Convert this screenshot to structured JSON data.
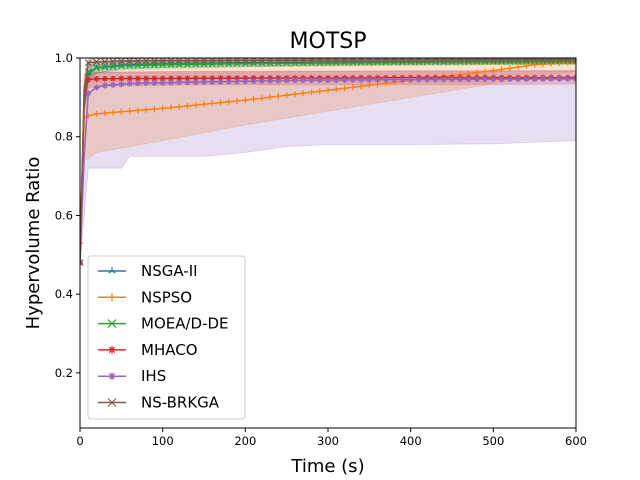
{
  "chart_data": {
    "type": "line",
    "title": "MOTSP",
    "xlabel": "Time (s)",
    "ylabel": "Hypervolume Ratio",
    "xlim": [
      0,
      600
    ],
    "ylim": [
      0.06,
      1.0
    ],
    "xticks": [
      0,
      100,
      200,
      300,
      400,
      500,
      600
    ],
    "yticks": [
      0.2,
      0.4,
      0.6,
      0.8,
      1.0
    ],
    "xtick_labels": [
      "0",
      "100",
      "200",
      "300",
      "400",
      "500",
      "600"
    ],
    "ytick_labels": [
      "0.2",
      "0.4",
      "0.6",
      "0.8",
      "1.0"
    ],
    "grid": false,
    "legend_position": "lower-left",
    "series": [
      {
        "name": "NSGA-II",
        "color": "#1f77b4",
        "marker": "tri",
        "x": [
          0,
          5,
          10,
          20,
          50,
          100,
          200,
          300,
          400,
          500,
          600
        ],
        "y": [
          0.48,
          0.88,
          0.96,
          0.975,
          0.982,
          0.985,
          0.988,
          0.99,
          0.991,
          0.992,
          0.993
        ],
        "band_low": [
          0.47,
          0.86,
          0.94,
          0.962,
          0.972,
          0.976,
          0.98,
          0.982,
          0.984,
          0.985,
          0.986
        ],
        "band_high": [
          0.49,
          0.92,
          0.98,
          0.99,
          0.994,
          0.996,
          0.997,
          0.998,
          0.998,
          0.999,
          0.999
        ]
      },
      {
        "name": "NSPSO",
        "color": "#ff7f0e",
        "marker": "plus",
        "x": [
          0,
          5,
          10,
          20,
          100,
          200,
          300,
          400,
          500,
          550,
          600
        ],
        "y": [
          0.53,
          0.85,
          0.853,
          0.858,
          0.872,
          0.893,
          0.918,
          0.943,
          0.968,
          0.983,
          0.99
        ],
        "band_low": [
          0.52,
          0.74,
          0.745,
          0.76,
          0.79,
          0.83,
          0.865,
          0.9,
          0.935,
          0.955,
          0.965
        ],
        "band_high": [
          0.54,
          0.96,
          0.962,
          0.965,
          0.972,
          0.978,
          0.984,
          0.99,
          0.995,
          0.998,
          1.0
        ]
      },
      {
        "name": "MOEA/D-DE",
        "color": "#2ca02c",
        "marker": "x",
        "x": [
          0,
          5,
          10,
          20,
          50,
          100,
          200,
          300,
          400,
          500,
          600
        ],
        "y": [
          0.48,
          0.9,
          0.965,
          0.975,
          0.98,
          0.983,
          0.986,
          0.988,
          0.99,
          0.991,
          0.992
        ],
        "band_low": [
          0.47,
          0.88,
          0.95,
          0.962,
          0.97,
          0.974,
          0.978,
          0.98,
          0.982,
          0.983,
          0.984
        ],
        "band_high": [
          0.49,
          0.93,
          0.98,
          0.99,
          0.994,
          0.995,
          0.996,
          0.997,
          0.998,
          0.998,
          0.999
        ]
      },
      {
        "name": "MHACO",
        "color": "#d62728",
        "marker": "star",
        "x": [
          0,
          5,
          10,
          20,
          50,
          100,
          200,
          300,
          400,
          500,
          600
        ],
        "y": [
          0.48,
          0.9,
          0.945,
          0.947,
          0.948,
          0.948,
          0.949,
          0.949,
          0.95,
          0.95,
          0.95
        ],
        "band_low": [
          0.47,
          0.86,
          0.925,
          0.928,
          0.93,
          0.931,
          0.932,
          0.932,
          0.933,
          0.933,
          0.934
        ],
        "band_high": [
          0.49,
          0.93,
          0.962,
          0.963,
          0.964,
          0.965,
          0.965,
          0.966,
          0.966,
          0.966,
          0.967
        ]
      },
      {
        "name": "IHS",
        "color": "#9467bd",
        "marker": "star",
        "x": [
          0,
          5,
          10,
          20,
          30,
          50,
          60,
          100,
          150,
          200,
          250,
          300,
          400,
          500,
          600
        ],
        "y": [
          0.48,
          0.75,
          0.91,
          0.925,
          0.93,
          0.933,
          0.935,
          0.937,
          0.939,
          0.941,
          0.943,
          0.944,
          0.945,
          0.946,
          0.947
        ],
        "band_low": [
          0.47,
          0.6,
          0.72,
          0.72,
          0.72,
          0.72,
          0.75,
          0.75,
          0.75,
          0.76,
          0.775,
          0.78,
          0.78,
          0.782,
          0.79
        ],
        "band_high": [
          0.49,
          0.9,
          0.96,
          0.962,
          0.963,
          0.964,
          0.965,
          0.965,
          0.966,
          0.966,
          0.967,
          0.967,
          0.968,
          0.968,
          0.969
        ]
      },
      {
        "name": "NS-BRKGA",
        "color": "#8c564b",
        "marker": "x",
        "x": [
          0,
          5,
          10,
          20,
          50,
          100,
          200,
          300,
          400,
          500,
          600
        ],
        "y": [
          0.48,
          0.92,
          0.988,
          0.99,
          0.992,
          0.993,
          0.994,
          0.995,
          0.995,
          0.996,
          0.996
        ],
        "band_low": [
          0.47,
          0.9,
          0.975,
          0.978,
          0.98,
          0.982,
          0.984,
          0.985,
          0.985,
          0.986,
          0.986
        ],
        "band_high": [
          0.49,
          0.95,
          0.998,
          0.999,
          0.999,
          1.0,
          1.0,
          1.0,
          1.0,
          1.0,
          1.0
        ]
      }
    ]
  }
}
